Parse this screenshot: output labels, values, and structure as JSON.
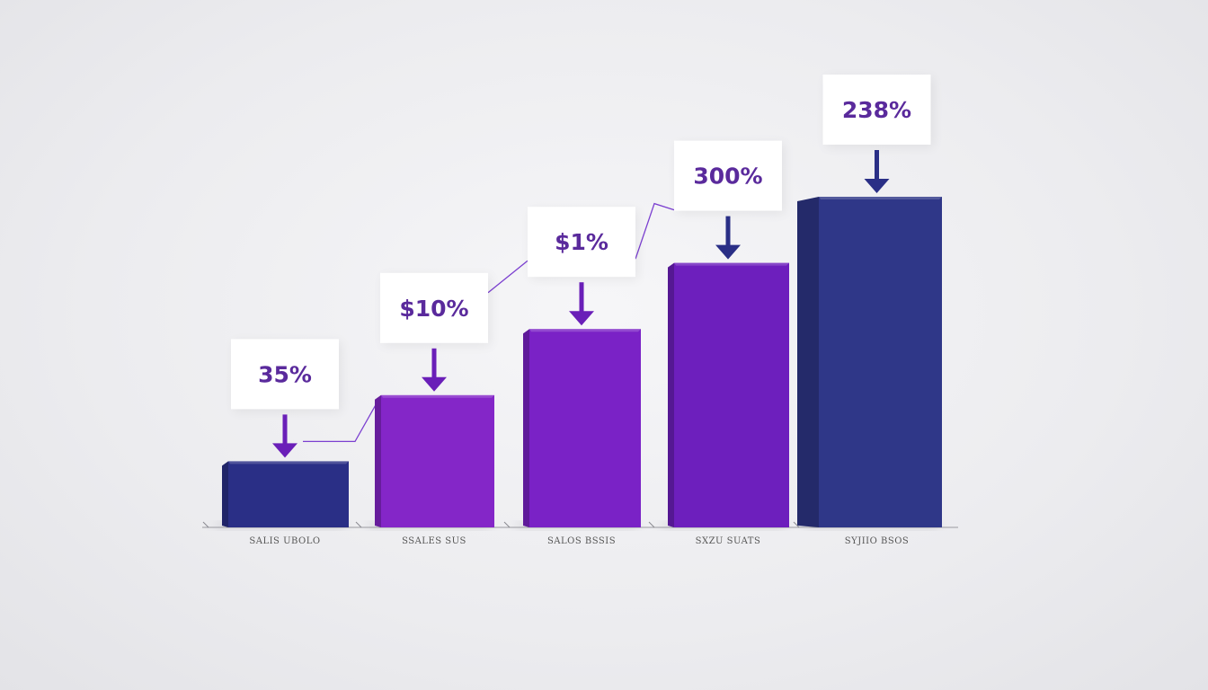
{
  "chart_data": {
    "type": "bar",
    "title": "",
    "xlabel": "",
    "ylabel": "",
    "categories": [
      "SALIS UBOLO",
      "SSALES SUS",
      "SALOS BSSIS",
      "SXZU SUATS",
      "SYJIIO BSOS"
    ],
    "values": [
      1,
      2,
      3,
      4,
      5
    ],
    "labels": [
      "35%",
      "$10%",
      "$1%",
      "300%",
      "238%"
    ],
    "colors": [
      "#2a2f86",
      "#8426c8",
      "#7a22c6",
      "#6d1fbd",
      "#2f3788"
    ],
    "label_color": "#5a2a9c",
    "arrow_colors": [
      "#6a1fb8",
      "#6a1fb8",
      "#6a1fb8",
      "#2a2f86",
      "#2a2f86"
    ],
    "trend_line_color": "#7b3fd0",
    "ylim": [
      0,
      5
    ],
    "grid": false,
    "axes_visible": false
  }
}
